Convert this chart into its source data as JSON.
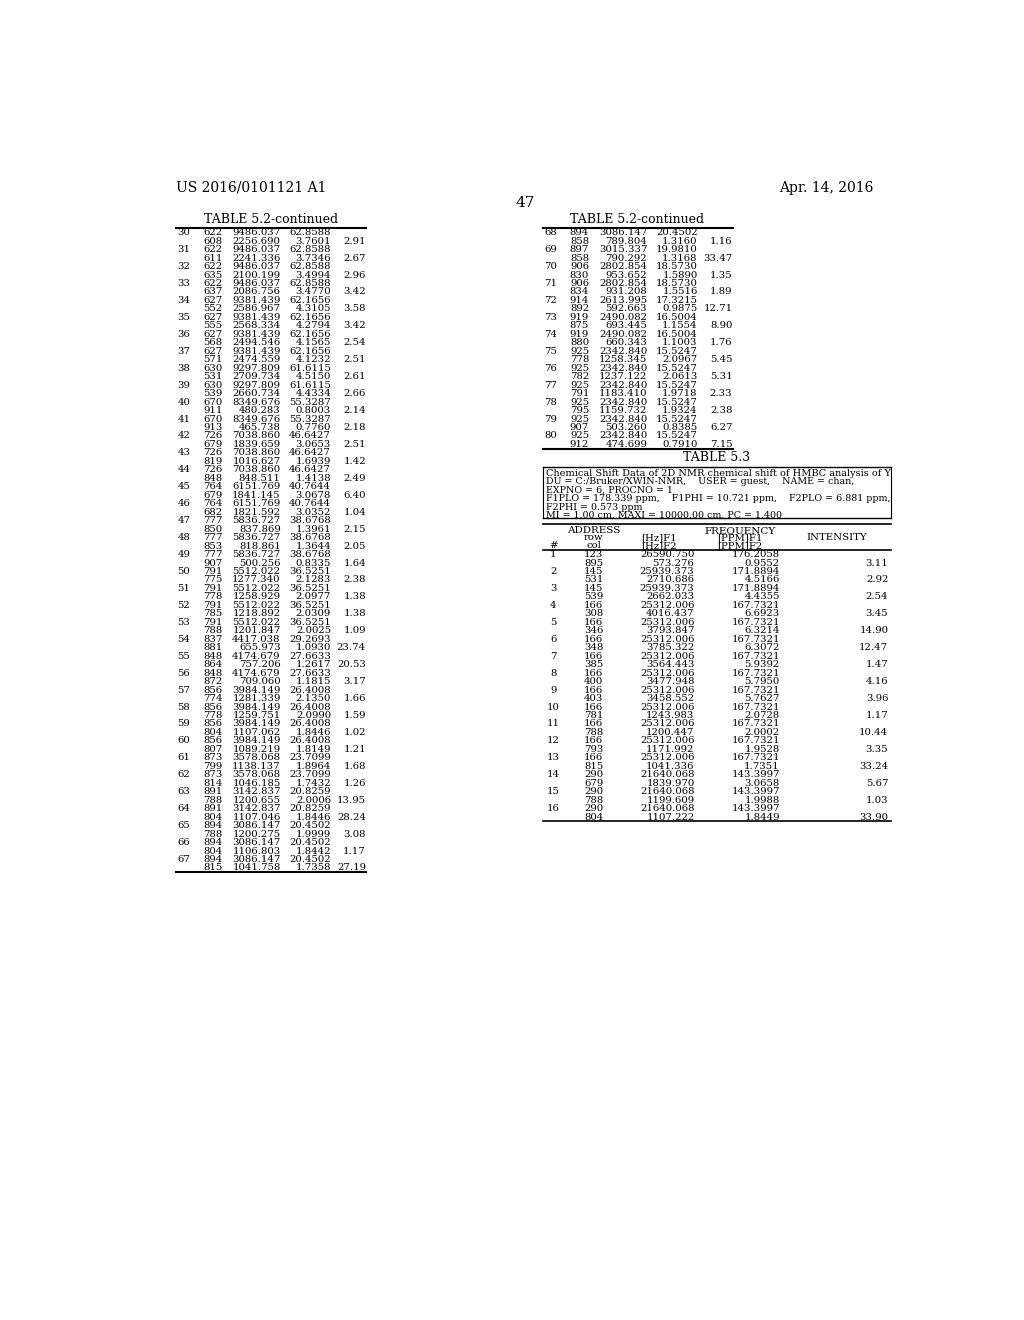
{
  "header_left": "US 2016/0101121 A1",
  "header_right": "Apr. 14, 2016",
  "page_number": "47",
  "background_color": "#ffffff",
  "text_color": "#000000",
  "table1_title": "TABLE 5.2-continued",
  "table2_title": "TABLE 5.2-continued",
  "table3_title": "TABLE 5.3",
  "table3_desc": "Chemical Shift Data of 2D NMR chemical shift of HMBC analysis of Y",
  "table3_param_lines": [
    "DU = C:/Bruker/XWIN-NMR,    USER = guest,    NAME = chan,",
    "EXPNO = 6, PROCNO = 1",
    "F1PLO = 178.339 ppm,    F1PHI = 10.721 ppm,    F2PLO = 6.881 ppm,",
    "F2PHI = 0.573 ppm",
    "MI = 1.00 cm, MAXI = 10000.00 cm, PC = 1.400"
  ],
  "table1_data": [
    [
      "30",
      "622",
      "9486.037",
      "62.8588",
      ""
    ],
    [
      "",
      "608",
      "2256.690",
      "3.7601",
      "2.91"
    ],
    [
      "31",
      "622",
      "9486.037",
      "62.8588",
      ""
    ],
    [
      "",
      "611",
      "2241.336",
      "3.7346",
      "2.67"
    ],
    [
      "32",
      "622",
      "9486.037",
      "62.8588",
      ""
    ],
    [
      "",
      "635",
      "2100.199",
      "3.4994",
      "2.96"
    ],
    [
      "33",
      "622",
      "9486.037",
      "62.8588",
      ""
    ],
    [
      "",
      "637",
      "2086.756",
      "3.4770",
      "3.42"
    ],
    [
      "34",
      "627",
      "9381.439",
      "62.1656",
      ""
    ],
    [
      "",
      "552",
      "2586.967",
      "4.3105",
      "3.58"
    ],
    [
      "35",
      "627",
      "9381.439",
      "62.1656",
      ""
    ],
    [
      "",
      "555",
      "2568.334",
      "4.2794",
      "3.42"
    ],
    [
      "36",
      "627",
      "9381.439",
      "62.1656",
      ""
    ],
    [
      "",
      "568",
      "2494.546",
      "4.1565",
      "2.54"
    ],
    [
      "37",
      "627",
      "9381.439",
      "62.1656",
      ""
    ],
    [
      "",
      "571",
      "2474.559",
      "4.1232",
      "2.51"
    ],
    [
      "38",
      "630",
      "9297.809",
      "61.6115",
      ""
    ],
    [
      "",
      "531",
      "2709.734",
      "4.5150",
      "2.61"
    ],
    [
      "39",
      "630",
      "9297.809",
      "61.6115",
      ""
    ],
    [
      "",
      "539",
      "2660.734",
      "4.4334",
      "2.66"
    ],
    [
      "40",
      "670",
      "8349.676",
      "55.3287",
      ""
    ],
    [
      "",
      "911",
      "480.283",
      "0.8003",
      "2.14"
    ],
    [
      "41",
      "670",
      "8349.676",
      "55.3287",
      ""
    ],
    [
      "",
      "913",
      "465.738",
      "0.7760",
      "2.18"
    ],
    [
      "42",
      "726",
      "7038.860",
      "46.6427",
      ""
    ],
    [
      "",
      "679",
      "1839.659",
      "3.0653",
      "2.51"
    ],
    [
      "43",
      "726",
      "7038.860",
      "46.6427",
      ""
    ],
    [
      "",
      "819",
      "1016.627",
      "1.6939",
      "1.42"
    ],
    [
      "44",
      "726",
      "7038.860",
      "46.6427",
      ""
    ],
    [
      "",
      "848",
      "848.511",
      "1.4138",
      "2.49"
    ],
    [
      "45",
      "764",
      "6151.769",
      "40.7644",
      ""
    ],
    [
      "",
      "679",
      "1841.145",
      "3.0678",
      "6.40"
    ],
    [
      "46",
      "764",
      "6151.769",
      "40.7644",
      ""
    ],
    [
      "",
      "682",
      "1821.592",
      "3.0352",
      "1.04"
    ],
    [
      "47",
      "777",
      "5836.727",
      "38.6768",
      ""
    ],
    [
      "",
      "850",
      "837.869",
      "1.3961",
      "2.15"
    ],
    [
      "48",
      "777",
      "5836.727",
      "38.6768",
      ""
    ],
    [
      "",
      "853",
      "818.861",
      "1.3644",
      "2.05"
    ],
    [
      "49",
      "777",
      "5836.727",
      "38.6768",
      ""
    ],
    [
      "",
      "907",
      "500.256",
      "0.8335",
      "1.64"
    ],
    [
      "50",
      "791",
      "5512.022",
      "36.5251",
      ""
    ],
    [
      "",
      "775",
      "1277.340",
      "2.1283",
      "2.38"
    ],
    [
      "51",
      "791",
      "5512.022",
      "36.5251",
      ""
    ],
    [
      "",
      "778",
      "1258.929",
      "2.0977",
      "1.38"
    ],
    [
      "52",
      "791",
      "5512.022",
      "36.5251",
      ""
    ],
    [
      "",
      "785",
      "1218.892",
      "2.0309",
      "1.38"
    ],
    [
      "53",
      "791",
      "5512.022",
      "36.5251",
      ""
    ],
    [
      "",
      "788",
      "1201.847",
      "2.0025",
      "1.09"
    ],
    [
      "54",
      "837",
      "4417.038",
      "29.2693",
      ""
    ],
    [
      "",
      "881",
      "655.973",
      "1.0930",
      "23.74"
    ],
    [
      "55",
      "848",
      "4174.679",
      "27.6633",
      ""
    ],
    [
      "",
      "864",
      "757.206",
      "1.2617",
      "20.53"
    ],
    [
      "56",
      "848",
      "4174.679",
      "27.6633",
      ""
    ],
    [
      "",
      "872",
      "709.060",
      "1.1815",
      "3.17"
    ],
    [
      "57",
      "856",
      "3984.149",
      "26.4008",
      ""
    ],
    [
      "",
      "774",
      "1281.339",
      "2.1350",
      "1.66"
    ],
    [
      "58",
      "856",
      "3984.149",
      "26.4008",
      ""
    ],
    [
      "",
      "778",
      "1259.751",
      "2.0990",
      "1.59"
    ],
    [
      "59",
      "856",
      "3984.149",
      "26.4008",
      ""
    ],
    [
      "",
      "804",
      "1107.062",
      "1.8446",
      "1.02"
    ],
    [
      "60",
      "856",
      "3984.149",
      "26.4008",
      ""
    ],
    [
      "",
      "807",
      "1089.219",
      "1.8149",
      "1.21"
    ],
    [
      "61",
      "873",
      "3578.068",
      "23.7099",
      ""
    ],
    [
      "",
      "799",
      "1138.137",
      "1.8964",
      "1.68"
    ],
    [
      "62",
      "873",
      "3578.068",
      "23.7099",
      ""
    ],
    [
      "",
      "814",
      "1046.185",
      "1.7432",
      "1.26"
    ],
    [
      "63",
      "891",
      "3142.837",
      "20.8259",
      ""
    ],
    [
      "",
      "788",
      "1200.655",
      "2.0006",
      "13.95"
    ],
    [
      "64",
      "891",
      "3142.837",
      "20.8259",
      ""
    ],
    [
      "",
      "804",
      "1107.046",
      "1.8446",
      "28.24"
    ],
    [
      "65",
      "894",
      "3086.147",
      "20.4502",
      ""
    ],
    [
      "",
      "788",
      "1200.275",
      "1.9999",
      "3.08"
    ],
    [
      "66",
      "894",
      "3086.147",
      "20.4502",
      ""
    ],
    [
      "",
      "804",
      "1106.803",
      "1.8442",
      "1.17"
    ],
    [
      "67",
      "894",
      "3086.147",
      "20.4502",
      ""
    ],
    [
      "",
      "815",
      "1041.758",
      "1.7358",
      "27.19"
    ]
  ],
  "table2_data": [
    [
      "68",
      "894",
      "3086.147",
      "20.4502",
      ""
    ],
    [
      "",
      "858",
      "789.804",
      "1.3160",
      "1.16"
    ],
    [
      "69",
      "897",
      "3015.337",
      "19.9810",
      ""
    ],
    [
      "",
      "858",
      "790.292",
      "1.3168",
      "33.47"
    ],
    [
      "70",
      "906",
      "2802.854",
      "18.5730",
      ""
    ],
    [
      "",
      "830",
      "953.652",
      "1.5890",
      "1.35"
    ],
    [
      "71",
      "906",
      "2802.854",
      "18.5730",
      ""
    ],
    [
      "",
      "834",
      "931.208",
      "1.5516",
      "1.89"
    ],
    [
      "72",
      "914",
      "2613.995",
      "17.3215",
      ""
    ],
    [
      "",
      "892",
      "592.663",
      "0.9875",
      "12.71"
    ],
    [
      "73",
      "919",
      "2490.082",
      "16.5004",
      ""
    ],
    [
      "",
      "875",
      "693.445",
      "1.1554",
      "8.90"
    ],
    [
      "74",
      "919",
      "2490.082",
      "16.5004",
      ""
    ],
    [
      "",
      "880",
      "660.343",
      "1.1003",
      "1.76"
    ],
    [
      "75",
      "925",
      "2342.840",
      "15.5247",
      ""
    ],
    [
      "",
      "778",
      "1258.345",
      "2.0967",
      "5.45"
    ],
    [
      "76",
      "925",
      "2342.840",
      "15.5247",
      ""
    ],
    [
      "",
      "782",
      "1237.122",
      "2.0613",
      "5.31"
    ],
    [
      "77",
      "925",
      "2342.840",
      "15.5247",
      ""
    ],
    [
      "",
      "791",
      "1183.410",
      "1.9718",
      "2.33"
    ],
    [
      "78",
      "925",
      "2342.840",
      "15.5247",
      ""
    ],
    [
      "",
      "795",
      "1159.732",
      "1.9324",
      "2.38"
    ],
    [
      "79",
      "925",
      "2342.840",
      "15.5247",
      ""
    ],
    [
      "",
      "907",
      "503.260",
      "0.8385",
      "6.27"
    ],
    [
      "80",
      "925",
      "2342.840",
      "15.5247",
      ""
    ],
    [
      "",
      "912",
      "474.699",
      "0.7910",
      "7.15"
    ]
  ],
  "table3_data": [
    [
      "1",
      "123",
      "26590.750",
      "176.2058",
      ""
    ],
    [
      "",
      "895",
      "573.276",
      "0.9552",
      "3.11"
    ],
    [
      "2",
      "145",
      "25939.373",
      "171.8894",
      ""
    ],
    [
      "",
      "531",
      "2710.686",
      "4.5166",
      "2.92"
    ],
    [
      "3",
      "145",
      "25939.373",
      "171.8894",
      ""
    ],
    [
      "",
      "539",
      "2662.033",
      "4.4355",
      "2.54"
    ],
    [
      "4",
      "166",
      "25312.006",
      "167.7321",
      ""
    ],
    [
      "",
      "308",
      "4016.437",
      "6.6923",
      "3.45"
    ],
    [
      "5",
      "166",
      "25312.006",
      "167.7321",
      ""
    ],
    [
      "",
      "346",
      "3793.847",
      "6.3214",
      "14.90"
    ],
    [
      "6",
      "166",
      "25312.006",
      "167.7321",
      ""
    ],
    [
      "",
      "348",
      "3785.322",
      "6.3072",
      "12.47"
    ],
    [
      "7",
      "166",
      "25312.006",
      "167.7321",
      ""
    ],
    [
      "",
      "385",
      "3564.443",
      "5.9392",
      "1.47"
    ],
    [
      "8",
      "166",
      "25312.006",
      "167.7321",
      ""
    ],
    [
      "",
      "400",
      "3477.948",
      "5.7950",
      "4.16"
    ],
    [
      "9",
      "166",
      "25312.006",
      "167.7321",
      ""
    ],
    [
      "",
      "403",
      "3458.552",
      "5.7627",
      "3.96"
    ],
    [
      "10",
      "166",
      "25312.006",
      "167.7321",
      ""
    ],
    [
      "",
      "781",
      "1243.983",
      "2.0728",
      "1.17"
    ],
    [
      "11",
      "166",
      "25312.006",
      "167.7321",
      ""
    ],
    [
      "",
      "788",
      "1200.447",
      "2.0002",
      "10.44"
    ],
    [
      "12",
      "166",
      "25312.006",
      "167.7321",
      ""
    ],
    [
      "",
      "793",
      "1171.992",
      "1.9528",
      "3.35"
    ],
    [
      "13",
      "166",
      "25312.006",
      "167.7321",
      ""
    ],
    [
      "",
      "815",
      "1041.336",
      "1.7351",
      "33.24"
    ],
    [
      "14",
      "290",
      "21640.068",
      "143.3997",
      ""
    ],
    [
      "",
      "679",
      "1839.970",
      "3.0658",
      "5.67"
    ],
    [
      "15",
      "290",
      "21640.068",
      "143.3997",
      ""
    ],
    [
      "",
      "788",
      "1199.609",
      "1.9988",
      "1.03"
    ],
    [
      "16",
      "290",
      "21640.068",
      "143.3997",
      ""
    ],
    [
      "",
      "804",
      "1107.222",
      "1.8449",
      "33.90"
    ]
  ]
}
